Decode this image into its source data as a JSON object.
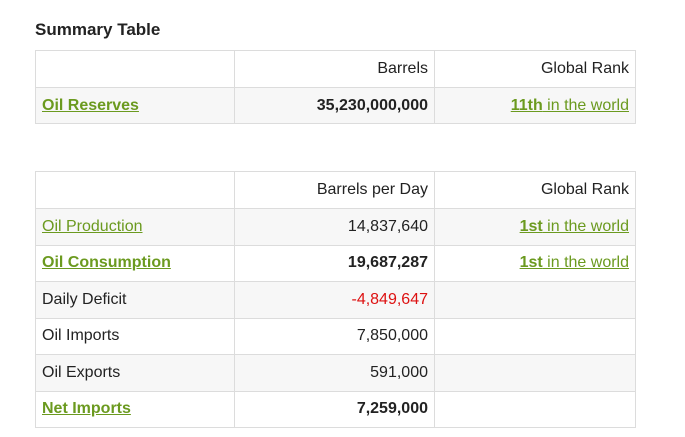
{
  "summary_title": "Summary Table",
  "reserves_table": {
    "headers": [
      "",
      "Barrels",
      "Global Rank"
    ],
    "row": {
      "label": "Oil Reserves",
      "value": "35,230,000,000",
      "rank_strong": "11th",
      "rank_rest": " in the world"
    }
  },
  "production_table": {
    "headers": [
      "",
      "Barrels per Day",
      "Global Rank"
    ],
    "rows": [
      {
        "label": "Oil Production",
        "value": "14,837,640",
        "rank_strong": "1st",
        "rank_rest": " in the world"
      },
      {
        "label": "Oil Consumption",
        "value": "19,687,287",
        "rank_strong": "1st",
        "rank_rest": " in the world"
      },
      {
        "label": "Daily Deficit",
        "value": "-4,849,647"
      },
      {
        "label": "Oil Imports",
        "value": "7,850,000"
      },
      {
        "label": "Oil Exports",
        "value": "591,000"
      },
      {
        "label": "Net Imports",
        "value": "7,259,000"
      }
    ]
  },
  "colors": {
    "link": "#6b9a1f",
    "negative": "#dd1111",
    "row_shade": "#f7f7f7",
    "border": "#dcdcdc"
  }
}
